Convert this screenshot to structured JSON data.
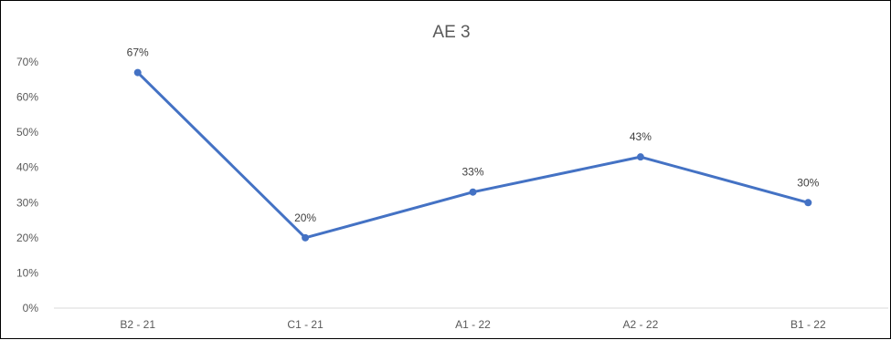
{
  "chart_data": {
    "type": "line",
    "title": "AE 3",
    "xlabel": "",
    "ylabel": "",
    "categories": [
      "B2 - 21",
      "C1 - 21",
      "A1 - 22",
      "A2 - 22",
      "B1 - 22"
    ],
    "series": [
      {
        "values": [
          67,
          20,
          33,
          43,
          30
        ],
        "data_labels": [
          "67%",
          "20%",
          "33%",
          "43%",
          "30%"
        ],
        "color": "#4472C4"
      }
    ],
    "ylim": [
      0,
      70
    ],
    "yticks": [
      0,
      10,
      20,
      30,
      40,
      50,
      60,
      70
    ],
    "ytick_labels": [
      "0%",
      "10%",
      "20%",
      "30%",
      "40%",
      "50%",
      "60%",
      "70%"
    ],
    "grid": false,
    "legend": "none",
    "axis_color": "#D9D9D9"
  }
}
